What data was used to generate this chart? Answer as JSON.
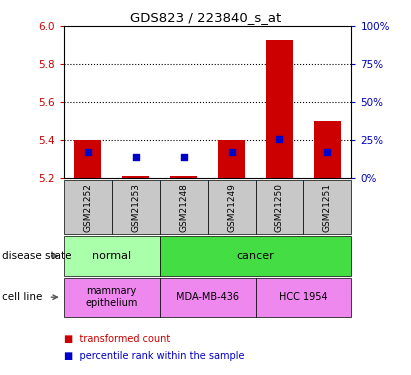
{
  "title": "GDS823 / 223840_s_at",
  "samples": [
    "GSM21252",
    "GSM21253",
    "GSM21248",
    "GSM21249",
    "GSM21250",
    "GSM21251"
  ],
  "ylim_left": [
    5.2,
    6.0
  ],
  "ylim_right": [
    0,
    100
  ],
  "yticks_left": [
    5.2,
    5.4,
    5.6,
    5.8,
    6.0
  ],
  "yticks_right": [
    0,
    25,
    50,
    75,
    100
  ],
  "bar_bottoms": [
    5.2,
    5.2,
    5.2,
    5.2,
    5.2,
    5.2
  ],
  "bar_tops": [
    5.4,
    5.21,
    5.21,
    5.4,
    5.93,
    5.5
  ],
  "percentile_values": [
    5.335,
    5.31,
    5.31,
    5.335,
    5.405,
    5.34
  ],
  "bar_color": "#cc0000",
  "percentile_color": "#0000cc",
  "disease_state_groups": [
    {
      "label": "normal",
      "start": 0,
      "end": 2,
      "color": "#aaffaa"
    },
    {
      "label": "cancer",
      "start": 2,
      "end": 6,
      "color": "#44dd44"
    }
  ],
  "cell_line_groups": [
    {
      "label": "mammary\nepithelium",
      "start": 0,
      "end": 2,
      "color": "#ee88ee"
    },
    {
      "label": "MDA-MB-436",
      "start": 2,
      "end": 4,
      "color": "#ee88ee"
    },
    {
      "label": "HCC 1954",
      "start": 4,
      "end": 6,
      "color": "#ee88ee"
    }
  ],
  "legend_items": [
    {
      "label": "transformed count",
      "color": "#cc0000"
    },
    {
      "label": "percentile rank within the sample",
      "color": "#0000cc"
    }
  ],
  "left_label_disease": "disease state",
  "left_label_cell": "cell line",
  "tick_color_left": "#cc0000",
  "tick_color_right": "#0000bb",
  "sample_box_color": "#c8c8c8",
  "grid_yticks": [
    5.4,
    5.6,
    5.8
  ]
}
